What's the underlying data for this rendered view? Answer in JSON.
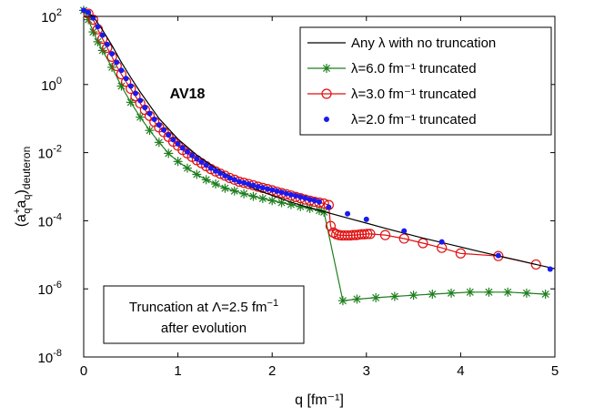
{
  "chart_data": {
    "type": "line",
    "title": "",
    "xlabel": "q [fm⁻¹]",
    "ylabel": "(a⁺_q a_q)_deuteron",
    "ylabel_parts": {
      "paren_open": "(a",
      "sup_plus": "+",
      "sub_q1": "q",
      "a2": "a",
      "sub_q2": "q",
      "paren_close": ")",
      "sub_deuteron": "deuteron"
    },
    "xlim": [
      0,
      5
    ],
    "ylim": [
      1e-08,
      100
    ],
    "yscale": "log",
    "grid": false,
    "x_ticks": [
      "0",
      "1",
      "2",
      "3",
      "4",
      "5"
    ],
    "y_ticks": [
      {
        "base": "10",
        "exp": "2"
      },
      {
        "base": "10",
        "exp": "0"
      },
      {
        "base": "10",
        "exp": "-2"
      },
      {
        "base": "10",
        "exp": "-4"
      },
      {
        "base": "10",
        "exp": "-6"
      },
      {
        "base": "10",
        "exp": "-8"
      }
    ],
    "legend_position": "top-right",
    "series": [
      {
        "name": "Any λ with no truncation",
        "color": "#000000",
        "marker": "none",
        "x": [
          0.0,
          0.1,
          0.2,
          0.3,
          0.4,
          0.5,
          0.6,
          0.8,
          1.0,
          1.2,
          1.4,
          1.6,
          1.8,
          2.0,
          2.2,
          2.4,
          2.6,
          2.8,
          3.0,
          3.2,
          3.4,
          3.6,
          3.8,
          4.0,
          4.2,
          4.4,
          4.6,
          4.8,
          5.0
        ],
        "y": [
          150,
          100,
          40,
          14,
          4.5,
          1.6,
          0.6,
          0.1,
          0.025,
          0.0085,
          0.0035,
          0.0017,
          0.0009,
          0.00055,
          0.00035,
          0.00024,
          0.00017,
          0.00012,
          8.5e-05,
          6e-05,
          4.3e-05,
          3.1e-05,
          2.3e-05,
          1.7e-05,
          1.25e-05,
          9.3e-06,
          7e-06,
          5.2e-06,
          3.9e-06
        ]
      },
      {
        "name": "λ=6.0 fm⁻¹ truncated",
        "color": "#1f7f1f",
        "marker": "asterisk",
        "x": [
          0.0,
          0.05,
          0.1,
          0.15,
          0.2,
          0.3,
          0.4,
          0.5,
          0.6,
          0.7,
          0.8,
          0.9,
          1.0,
          1.1,
          1.2,
          1.3,
          1.4,
          1.5,
          1.6,
          1.7,
          1.8,
          1.9,
          2.0,
          2.1,
          2.2,
          2.3,
          2.4,
          2.5,
          2.55,
          2.75,
          2.9,
          3.1,
          3.3,
          3.5,
          3.7,
          3.9,
          4.1,
          4.3,
          4.5,
          4.7,
          4.9
        ],
        "y": [
          150,
          80,
          35,
          18,
          10,
          3.2,
          0.9,
          0.3,
          0.11,
          0.045,
          0.02,
          0.0095,
          0.0055,
          0.0035,
          0.0023,
          0.0016,
          0.0012,
          0.0009,
          0.00075,
          0.00062,
          0.00052,
          0.00045,
          0.00039,
          0.00034,
          0.0003,
          0.00026,
          0.00023,
          0.0002,
          0.00018,
          4.5e-07,
          5e-07,
          5.5e-07,
          6e-07,
          6.5e-07,
          7e-07,
          7.5e-07,
          8e-07,
          8e-07,
          8e-07,
          7.5e-07,
          7e-07
        ]
      },
      {
        "name": "λ=3.0 fm⁻¹ truncated",
        "color": "#e01010",
        "marker": "circle-open",
        "x": [
          0.05,
          0.1,
          0.15,
          0.2,
          0.25,
          0.3,
          0.35,
          0.4,
          0.45,
          0.5,
          0.55,
          0.6,
          0.65,
          0.7,
          0.75,
          0.8,
          0.85,
          0.9,
          0.95,
          1.0,
          1.05,
          1.1,
          1.15,
          1.2,
          1.25,
          1.3,
          1.35,
          1.4,
          1.45,
          1.5,
          1.55,
          1.6,
          1.65,
          1.7,
          1.75,
          1.8,
          1.85,
          1.9,
          1.95,
          2.0,
          2.05,
          2.1,
          2.15,
          2.2,
          2.25,
          2.3,
          2.35,
          2.4,
          2.45,
          2.5,
          2.55,
          2.6,
          2.62,
          2.65,
          2.68,
          2.71,
          2.74,
          2.77,
          2.8,
          2.83,
          2.86,
          2.89,
          2.92,
          2.95,
          2.98,
          3.01,
          3.04,
          3.2,
          3.4,
          3.6,
          3.8,
          4.0,
          4.4,
          4.8
        ],
        "y": [
          120,
          80,
          42,
          22,
          12,
          6.5,
          3.5,
          2.0,
          1.2,
          0.75,
          0.45,
          0.28,
          0.18,
          0.12,
          0.08,
          0.055,
          0.04,
          0.029,
          0.021,
          0.016,
          0.012,
          0.0095,
          0.0075,
          0.006,
          0.0049,
          0.004,
          0.0033,
          0.0028,
          0.0024,
          0.0021,
          0.0018,
          0.0016,
          0.0014,
          0.0013,
          0.0012,
          0.0011,
          0.001,
          0.00092,
          0.00085,
          0.00078,
          0.00071,
          0.00065,
          0.0006,
          0.00055,
          0.0005,
          0.00046,
          0.00042,
          0.00039,
          0.00036,
          0.00034,
          0.00032,
          0.00029,
          7e-05,
          4.5e-05,
          4e-05,
          3.8e-05,
          3.7e-05,
          3.7e-05,
          3.7e-05,
          3.7e-05,
          3.8e-05,
          3.8e-05,
          3.9e-05,
          4e-05,
          4e-05,
          4.1e-05,
          4.1e-05,
          3.8e-05,
          3e-05,
          2.2e-05,
          1.6e-05,
          1.1e-05,
          9.2e-06,
          5.2e-06
        ]
      },
      {
        "name": "λ=2.0 fm⁻¹ truncated",
        "color": "#1a1aee",
        "marker": "dot",
        "x": [
          0.0,
          0.05,
          0.1,
          0.15,
          0.2,
          0.25,
          0.3,
          0.35,
          0.4,
          0.45,
          0.5,
          0.55,
          0.6,
          0.65,
          0.7,
          0.75,
          0.8,
          0.85,
          0.9,
          0.95,
          1.0,
          1.05,
          1.1,
          1.15,
          1.2,
          1.25,
          1.3,
          1.35,
          1.4,
          1.45,
          1.5,
          1.55,
          1.6,
          1.65,
          1.7,
          1.75,
          1.8,
          1.85,
          1.9,
          1.95,
          2.0,
          2.05,
          2.1,
          2.15,
          2.2,
          2.25,
          2.3,
          2.35,
          2.4,
          2.45,
          2.5,
          2.6,
          2.8,
          3.0,
          3.4,
          3.8,
          4.4,
          4.95
        ],
        "y": [
          150,
          130,
          90,
          50,
          28,
          15,
          8,
          4.5,
          2.6,
          1.5,
          0.9,
          0.55,
          0.34,
          0.21,
          0.14,
          0.095,
          0.065,
          0.046,
          0.033,
          0.024,
          0.018,
          0.0137,
          0.0106,
          0.0083,
          0.0066,
          0.0053,
          0.0043,
          0.0035,
          0.0029,
          0.0025,
          0.0021,
          0.0018,
          0.0016,
          0.0014,
          0.0013,
          0.0012,
          0.0011,
          0.001,
          0.00093,
          0.00086,
          0.0008,
          0.00074,
          0.00068,
          0.00063,
          0.00058,
          0.00054,
          0.0005,
          0.00046,
          0.00042,
          0.00039,
          0.00036,
          0.00025,
          0.00016,
          0.00011,
          5e-05,
          2.4e-05,
          9.5e-06,
          3.8e-06
        ]
      }
    ],
    "annotations": [
      {
        "text": "AV18",
        "style": "bold"
      },
      {
        "text_line1": "Truncation at Λ=2.5 fm",
        "sup": "−1",
        "text_line2": "after evolution",
        "style": "boxed"
      }
    ]
  }
}
